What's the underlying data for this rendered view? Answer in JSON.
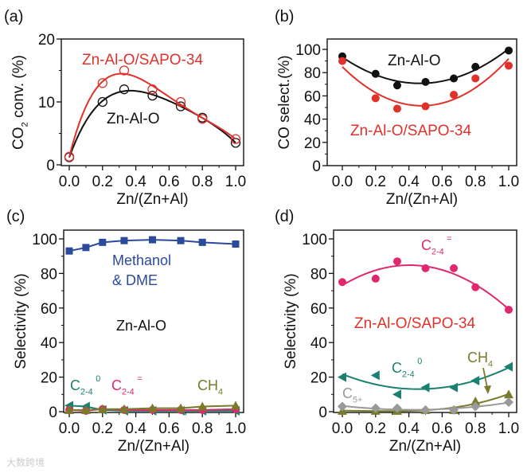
{
  "watermark": "大数跨境",
  "chart_data": [
    {
      "panel": "(a)",
      "type": "line",
      "xlabel": "Zn/(Zn+Al)",
      "ylabel": {
        "text": "CO",
        "sub": "2",
        "rest": " conv. (%)"
      },
      "xlim": [
        0,
        1.0
      ],
      "ylim": [
        0,
        20
      ],
      "xticks": [
        "0.0",
        "0.2",
        "0.4",
        "0.6",
        "0.8",
        "1.0"
      ],
      "yticks": [
        "0",
        "10",
        "20"
      ],
      "x": [
        0,
        0.2,
        0.33,
        0.5,
        0.67,
        0.8,
        1.0
      ],
      "series": [
        {
          "name": "Zn-Al-O",
          "color": "#111111",
          "marker": "open-circle",
          "values": [
            1.2,
            10,
            12,
            11,
            9.3,
            7.5,
            3.5
          ]
        },
        {
          "name": "Zn-Al-O/SAPO-34",
          "color": "#e0312b",
          "marker": "open-circle",
          "values": [
            1.3,
            13,
            15,
            12,
            10,
            7.3,
            4.1
          ]
        }
      ],
      "annotations": [
        {
          "text": "Zn-Al-O/SAPO-34",
          "color": "#e0312b"
        },
        {
          "text": "Zn-Al-O",
          "color": "#111111"
        }
      ]
    },
    {
      "panel": "(b)",
      "type": "line",
      "xlabel": "Zn/(Zn+Al)",
      "ylabel": {
        "text": "CO select.(%)",
        "sub": "",
        "rest": ""
      },
      "xlim": [
        0,
        1.0
      ],
      "ylim": [
        0,
        100
      ],
      "xticks": [
        "0.0",
        "0.2",
        "0.4",
        "0.6",
        "0.8",
        "1.0"
      ],
      "yticks": [
        "0",
        "20",
        "40",
        "60",
        "80",
        "100"
      ],
      "x": [
        0,
        0.2,
        0.33,
        0.5,
        0.67,
        0.8,
        1.0
      ],
      "series": [
        {
          "name": "Zn-Al-O",
          "color": "#111111",
          "marker": "circle",
          "values": [
            94,
            79,
            69,
            72,
            75,
            85,
            99
          ]
        },
        {
          "name": "Zn-Al-O/SAPO-34",
          "color": "#e0312b",
          "marker": "circle",
          "values": [
            90,
            58,
            49,
            51,
            61,
            75,
            86
          ]
        }
      ],
      "annotations": [
        {
          "text": "Zn-Al-O",
          "color": "#111111"
        },
        {
          "text": "Zn-Al-O/SAPO-34",
          "color": "#e0312b"
        }
      ]
    },
    {
      "panel": "(c)",
      "type": "line",
      "xlabel": "Zn/(Zn+Al)",
      "ylabel": {
        "text": "Selectivity (%)",
        "sub": "",
        "rest": ""
      },
      "xlim": [
        0,
        1.0
      ],
      "ylim": [
        0,
        100
      ],
      "xticks": [
        "0.0",
        "0.2",
        "0.4",
        "0.6",
        "0.8",
        "1.0"
      ],
      "yticks": [
        "0",
        "20",
        "40",
        "60",
        "80",
        "100"
      ],
      "x": [
        0,
        0.1,
        0.2,
        0.33,
        0.5,
        0.67,
        0.8,
        1.0
      ],
      "series": [
        {
          "name": "Methanol & DME",
          "color": "#2b4a9b",
          "marker": "square",
          "values": [
            93,
            95,
            98,
            99,
            99.5,
            99,
            98,
            97
          ]
        },
        {
          "name": "C2-4 paraffins",
          "color": "#1a8070",
          "marker": "left-triangle",
          "values": [
            3.5,
            3,
            1,
            0.5,
            0.5,
            0.5,
            0.5,
            0.5
          ]
        },
        {
          "name": "C2-4 olefins",
          "color": "#e0286e",
          "marker": "circle",
          "values": [
            1,
            0.5,
            1.5,
            1,
            1,
            1,
            1,
            1.5
          ]
        },
        {
          "name": "CH4",
          "color": "#7a7a2a",
          "marker": "up-triangle",
          "values": [
            1,
            1,
            1.5,
            1.5,
            2,
            2,
            3,
            3.5
          ]
        }
      ],
      "annotations": [
        {
          "text": "Methanol",
          "color": "#2b4a9b"
        },
        {
          "text": "& DME",
          "color": "#2b4a9b"
        },
        {
          "text": "Zn-Al-O",
          "color": "#111111"
        },
        {
          "text": "C",
          "sub": "2-4",
          "sup": "0",
          "color": "#1a8070"
        },
        {
          "text": "C",
          "sub": "2-4",
          "sup": "=",
          "color": "#e0286e"
        },
        {
          "text": "CH",
          "sub": "4",
          "sup": "",
          "color": "#7a7a2a"
        }
      ]
    },
    {
      "panel": "(d)",
      "type": "scatter",
      "xlabel": "Zn/(Zn+Al)",
      "ylabel": {
        "text": "Selectivity (%)",
        "sub": "",
        "rest": ""
      },
      "xlim": [
        0,
        1.0
      ],
      "ylim": [
        0,
        100
      ],
      "xticks": [
        "0.0",
        "0.2",
        "0.4",
        "0.6",
        "0.8",
        "1.0"
      ],
      "yticks": [
        "0",
        "20",
        "40",
        "60",
        "80",
        "100"
      ],
      "x": [
        0,
        0.2,
        0.33,
        0.5,
        0.67,
        0.8,
        1.0
      ],
      "series": [
        {
          "name": "C2-4 olefins",
          "color": "#e0286e",
          "marker": "circle",
          "values": [
            75,
            77,
            87,
            83,
            83,
            72,
            59
          ]
        },
        {
          "name": "C2-4 paraffins",
          "color": "#1a8070",
          "marker": "left-triangle",
          "values": [
            20,
            21,
            10,
            14,
            14,
            18,
            26
          ]
        },
        {
          "name": "CH4",
          "color": "#7a7a2a",
          "marker": "up-triangle",
          "values": [
            0.5,
            0.5,
            0.5,
            1,
            1,
            6,
            10
          ]
        },
        {
          "name": "C5+",
          "color": "#999999",
          "marker": "diamond",
          "values": [
            3,
            2,
            2,
            1,
            1,
            3,
            5.5
          ]
        }
      ],
      "annotations": [
        {
          "text": "C",
          "sub": "2-4",
          "sup": "=",
          "color": "#e0286e"
        },
        {
          "text": "Zn-Al-O/SAPO-34",
          "color": "#e0312b"
        },
        {
          "text": "C",
          "sub": "2-4",
          "sup": "0",
          "color": "#1a8070"
        },
        {
          "text": "CH",
          "sub": "4",
          "sup": "",
          "color": "#7a7a2a"
        },
        {
          "text": "C",
          "sub": "5+",
          "sup": "",
          "color": "#999999"
        }
      ]
    }
  ]
}
